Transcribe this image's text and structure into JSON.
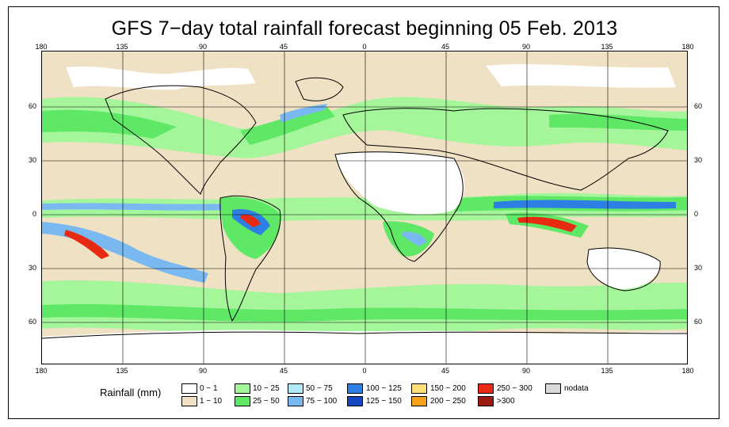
{
  "title": "GFS 7−day total rainfall forecast beginning 05 Feb. 2013",
  "axes": {
    "lon_labels": [
      "180",
      "135",
      "90",
      "45",
      "0",
      "45",
      "90",
      "135",
      "180"
    ],
    "lat_labels": [
      "60",
      "30",
      "0",
      "30",
      "60"
    ]
  },
  "legend": {
    "title": "Rainfall (mm)",
    "items": [
      {
        "label": "0 − 1",
        "color": "#ffffff"
      },
      {
        "label": "1 − 10",
        "color": "#efe1c3"
      },
      {
        "label": "10 − 25",
        "color": "#a5f59b"
      },
      {
        "label": "25 − 50",
        "color": "#5fe866"
      },
      {
        "label": "50 − 75",
        "color": "#b0eaf7"
      },
      {
        "label": "75 − 100",
        "color": "#7ab8f2"
      },
      {
        "label": "100 − 125",
        "color": "#2d7fe4"
      },
      {
        "label": "125 − 150",
        "color": "#1648c2"
      },
      {
        "label": "150 − 200",
        "color": "#fde178"
      },
      {
        "label": "200 − 250",
        "color": "#f6a21b"
      },
      {
        "label": "250 − 300",
        "color": "#e62b12"
      },
      {
        "label": ">300",
        "color": "#9b1b12"
      },
      {
        "label": "nodata",
        "color": "#d9d9d9"
      }
    ]
  }
}
